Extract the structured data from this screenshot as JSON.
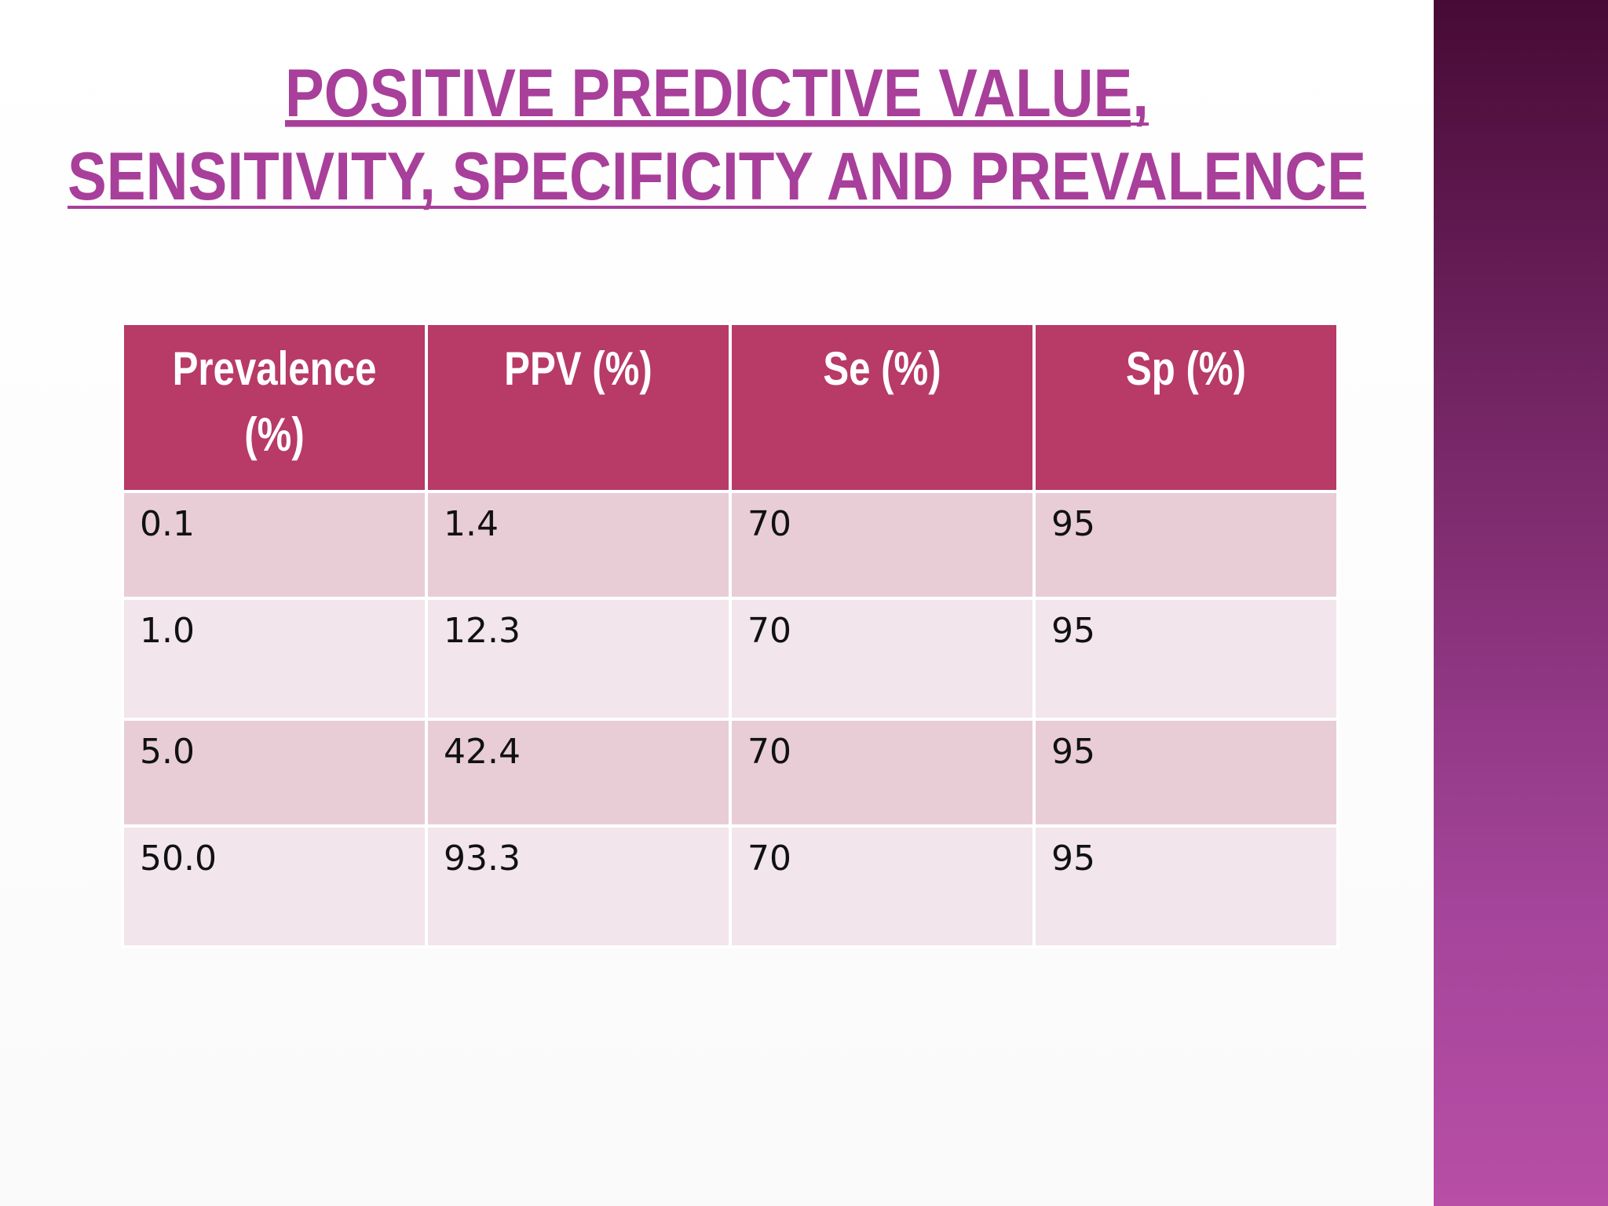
{
  "header": {
    "title": [
      "POSITIVE PREDICTIVE VALUE,",
      "SENSITIVITY, SPECIFICITY AND PREVALENCE"
    ]
  },
  "table": {
    "columns": [
      "Prevalence (%)",
      "PPV (%)",
      "Se (%)",
      "Sp (%)"
    ],
    "rows": [
      [
        "0.1",
        "1.4",
        "70",
        "95"
      ],
      [
        "1.0",
        "12.3",
        "70",
        "95"
      ],
      [
        "5.0",
        "42.4",
        "70",
        "95"
      ],
      [
        "50.0",
        "93.3",
        "70",
        "95"
      ]
    ]
  }
}
